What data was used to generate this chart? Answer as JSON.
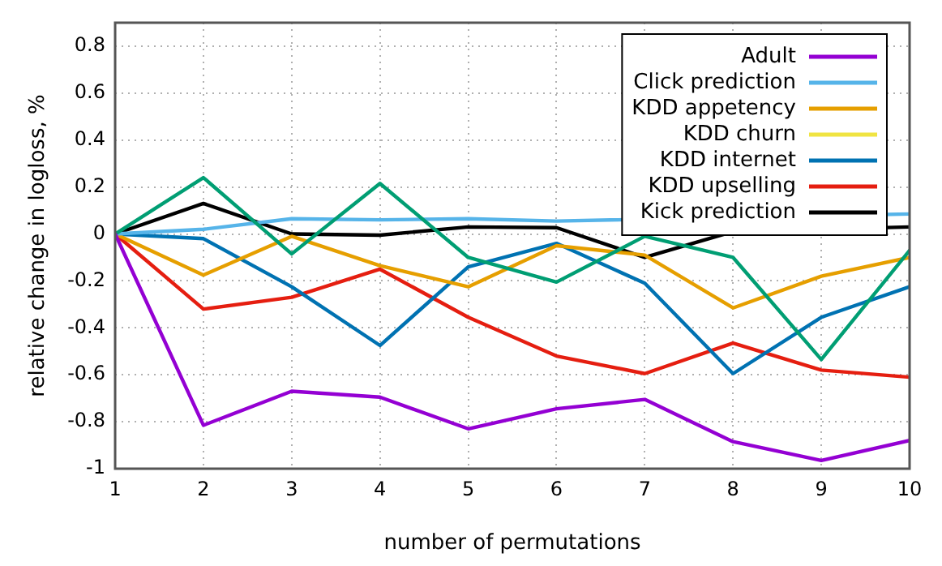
{
  "chart_data": {
    "type": "line",
    "xlabel": "number of permutations",
    "ylabel": "relative change in logloss, %",
    "x": [
      1,
      2,
      3,
      4,
      5,
      6,
      7,
      8,
      9,
      10
    ],
    "xlim": [
      1,
      10
    ],
    "xticks": [
      1,
      2,
      3,
      4,
      5,
      6,
      7,
      8,
      9,
      10
    ],
    "ylim": [
      -1,
      0.9
    ],
    "yticks": [
      -1,
      -0.8,
      -0.6,
      -0.4,
      -0.2,
      0,
      0.2,
      0.4,
      0.6,
      0.8
    ],
    "grid": true,
    "legend": "top right",
    "marker": "none",
    "line_style": "solid",
    "series": [
      {
        "name": "Adult",
        "color": "#9400d3",
        "values": [
          0,
          -0.815,
          -0.67,
          -0.695,
          -0.83,
          -0.745,
          -0.705,
          -0.885,
          -0.965,
          -0.88
        ]
      },
      {
        "color": "#009e73",
        "values": [
          0,
          0.24,
          -0.085,
          0.215,
          -0.1,
          -0.205,
          -0.01,
          -0.1,
          -0.535,
          -0.07
        ]
      },
      {
        "name": "Click prediction",
        "color": "#56b4e9",
        "values": [
          0,
          0.02,
          0.065,
          0.06,
          0.065,
          0.055,
          null,
          null,
          null,
          0.085
        ]
      },
      {
        "name": "KDD appetency",
        "color": "#e69f00",
        "values": [
          0,
          -0.175,
          -0.01,
          -0.135,
          -0.225,
          -0.05,
          -0.09,
          -0.315,
          -0.18,
          -0.1
        ]
      },
      {
        "name": "KDD churn",
        "color": "#f0e442",
        "values": [
          null,
          null,
          null,
          null,
          null,
          null,
          null,
          null,
          null,
          null
        ]
      },
      {
        "name": "KDD internet",
        "color": "#0072b2",
        "values": [
          0,
          -0.02,
          -0.225,
          -0.475,
          -0.14,
          -0.04,
          -0.21,
          -0.595,
          -0.355,
          -0.225
        ]
      },
      {
        "name": "KDD upselling",
        "color": "#e51e10",
        "values": [
          0,
          -0.32,
          -0.27,
          -0.15,
          -0.355,
          -0.52,
          -0.595,
          -0.465,
          -0.58,
          -0.61
        ]
      },
      {
        "name": "Kick prediction",
        "color": "#000000",
        "values": [
          0,
          0.13,
          0,
          -0.005,
          0.03,
          0.027,
          -0.1,
          0.01,
          null,
          0.03
        ]
      }
    ]
  }
}
